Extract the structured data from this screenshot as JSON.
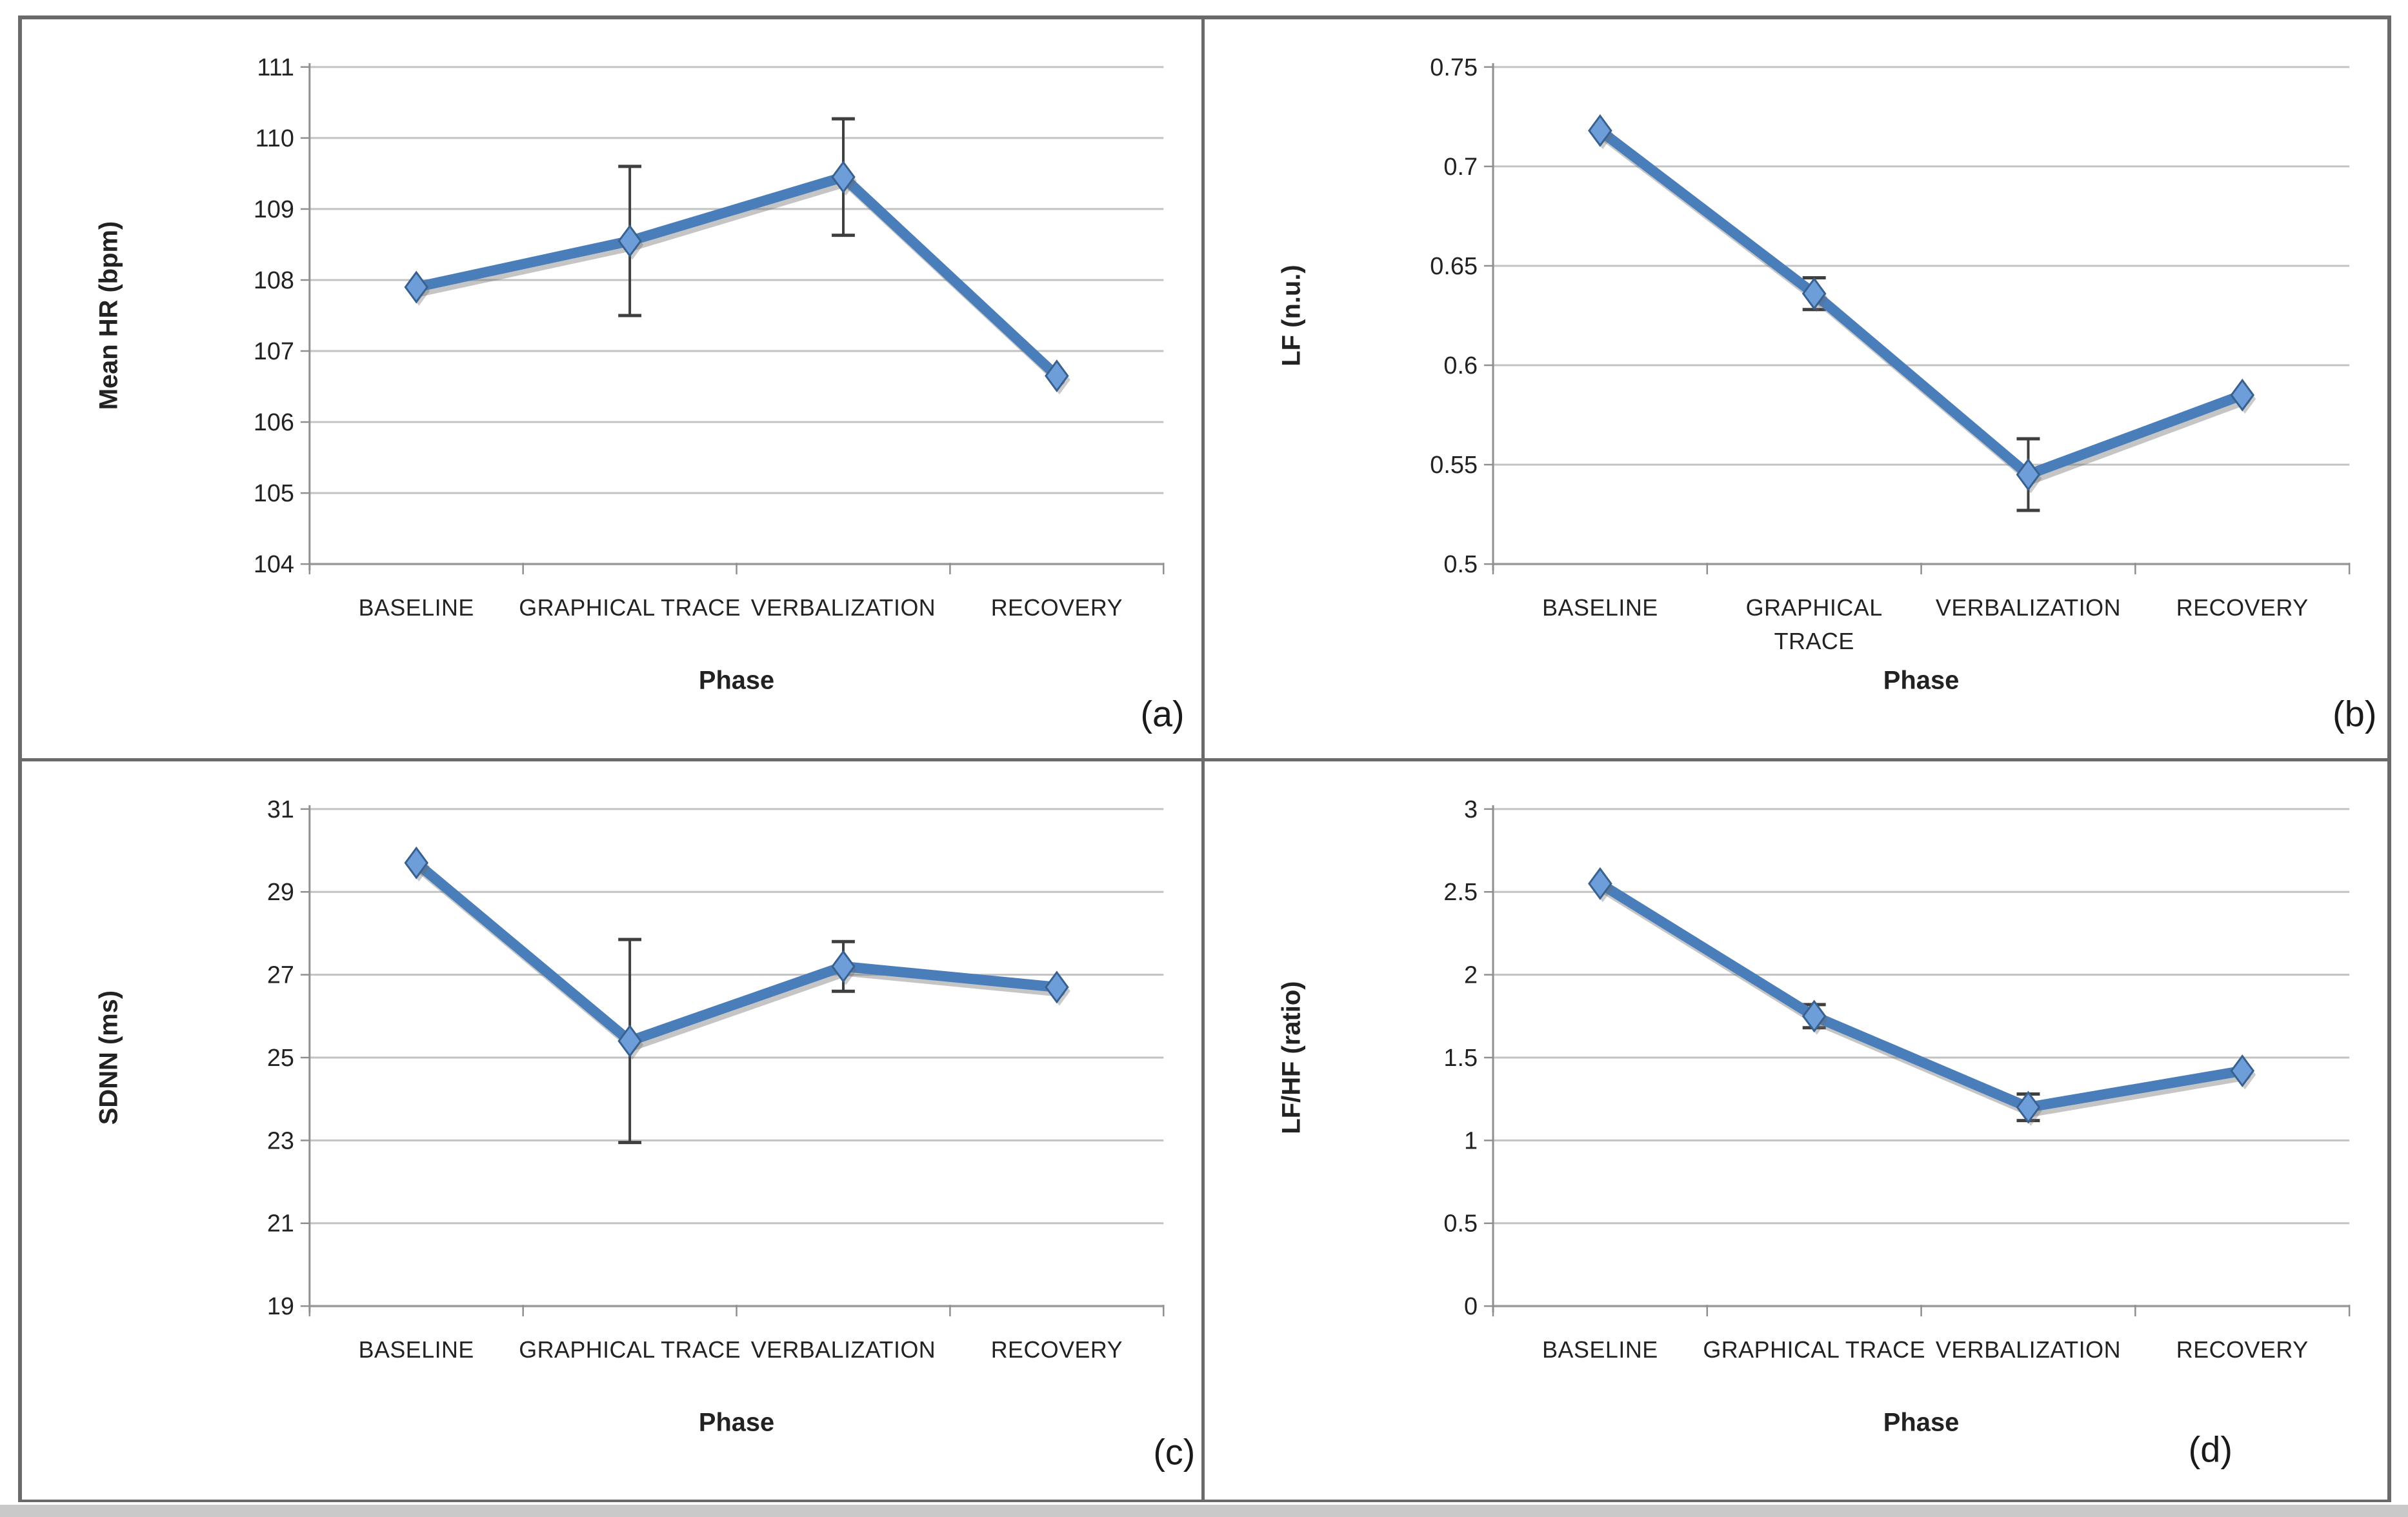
{
  "figure": {
    "description": "Four-panel line chart figure of physiological measures across task phases",
    "panel_letters": [
      "(a)",
      "(b)",
      "(c)",
      "(d)"
    ],
    "colors": {
      "line": "#4a7ebb",
      "line_shadow": "rgba(110,110,110,0.40)",
      "marker_fill": "#6d9eda",
      "marker_stroke": "#39618f",
      "error_bar": "#3f3f3f",
      "gridline": "#c3c3c3",
      "axis": "#8f8f8f",
      "text": "#222222",
      "border": "#6a6a6a"
    }
  },
  "chart_data": [
    {
      "panel_label": "(a)",
      "type": "line",
      "categories": [
        "BASELINE",
        "GRAPHICAL TRACE",
        "VERBALIZATION",
        "RECOVERY"
      ],
      "xtick_labels": [
        "BASELINE",
        "GRAPHICAL TRACE",
        "VERBALIZATION",
        "RECOVERY"
      ],
      "xlabel": "Phase",
      "ylabel": "Mean HR (bpm)",
      "ylim": [
        104,
        111
      ],
      "yticks": [
        104,
        105,
        106,
        107,
        108,
        109,
        110,
        111
      ],
      "ytick_labels": [
        "104",
        "105",
        "106",
        "107",
        "108",
        "109",
        "110",
        "111"
      ],
      "grid": true,
      "legend": false,
      "series": [
        {
          "name": "Mean HR",
          "marker": "diamond",
          "values": [
            107.9,
            108.55,
            109.45,
            106.65
          ],
          "errors": [
            null,
            1.05,
            0.82,
            null
          ]
        }
      ]
    },
    {
      "panel_label": "(b)",
      "type": "line",
      "categories": [
        "BASELINE",
        "GRAPHICAL TRACE",
        "VERBALIZATION",
        "RECOVERY"
      ],
      "xtick_labels": [
        "BASELINE",
        "GRAPHICAL\nTRACE",
        "VERBALIZATION",
        "RECOVERY"
      ],
      "xlabel": "Phase",
      "ylabel": "LF (n.u.)",
      "ylim": [
        0.5,
        0.75
      ],
      "yticks": [
        0.5,
        0.55,
        0.6,
        0.65,
        0.7,
        0.75
      ],
      "ytick_labels": [
        "0.5",
        "0.55",
        "0.6",
        "0.65",
        "0.7",
        "0.75"
      ],
      "grid": true,
      "legend": false,
      "series": [
        {
          "name": "LF",
          "marker": "diamond",
          "values": [
            0.718,
            0.636,
            0.545,
            0.585
          ],
          "errors": [
            null,
            0.008,
            0.018,
            null
          ]
        }
      ]
    },
    {
      "panel_label": "(c)",
      "type": "line",
      "categories": [
        "BASELINE",
        "GRAPHICAL TRACE",
        "VERBALIZATION",
        "RECOVERY"
      ],
      "xtick_labels": [
        "BASELINE",
        "GRAPHICAL TRACE",
        "VERBALIZATION",
        "RECOVERY"
      ],
      "xlabel": "Phase",
      "ylabel": "SDNN (ms)",
      "ylim": [
        19,
        31
      ],
      "yticks": [
        19,
        21,
        23,
        25,
        27,
        29,
        31
      ],
      "ytick_labels": [
        "19",
        "21",
        "23",
        "25",
        "27",
        "29",
        "31"
      ],
      "grid": true,
      "legend": false,
      "series": [
        {
          "name": "SDNN",
          "marker": "diamond",
          "values": [
            29.7,
            25.4,
            27.2,
            26.7
          ],
          "errors": [
            null,
            2.45,
            0.6,
            null
          ]
        }
      ]
    },
    {
      "panel_label": "(d)",
      "type": "line",
      "categories": [
        "BASELINE",
        "GRAPHICAL TRACE",
        "VERBALIZATION",
        "RECOVERY"
      ],
      "xtick_labels": [
        "BASELINE",
        "GRAPHICAL TRACE",
        "VERBALIZATION",
        "RECOVERY"
      ],
      "xlabel": "Phase",
      "ylabel": "LF/HF (ratio)",
      "ylim": [
        0,
        3
      ],
      "yticks": [
        0,
        0.5,
        1,
        1.5,
        2,
        2.5,
        3
      ],
      "ytick_labels": [
        "0",
        "0.5",
        "1",
        "1.5",
        "2",
        "2.5",
        "3"
      ],
      "grid": true,
      "legend": false,
      "series": [
        {
          "name": "LF/HF",
          "marker": "diamond",
          "values": [
            2.55,
            1.75,
            1.2,
            1.42
          ],
          "errors": [
            null,
            0.07,
            0.08,
            null
          ]
        }
      ]
    }
  ]
}
